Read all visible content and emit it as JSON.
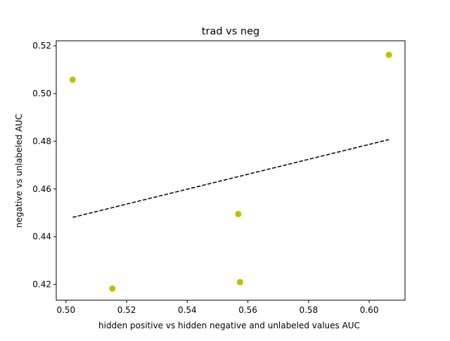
{
  "chart_data": {
    "type": "scatter",
    "title": "trad vs neg",
    "xlabel": "hidden positive vs hidden negative and unlabeled values AUC",
    "ylabel": "negative vs unlabeled AUC",
    "xlim": [
      0.4968,
      0.6118
    ],
    "ylim": [
      0.4134,
      0.5221
    ],
    "xticks": [
      0.5,
      0.52,
      0.54,
      0.56,
      0.58,
      0.6
    ],
    "xtick_labels": [
      "0.50",
      "0.52",
      "0.54",
      "0.56",
      "0.58",
      "0.60"
    ],
    "yticks": [
      0.42,
      0.44,
      0.46,
      0.48,
      0.5,
      0.52
    ],
    "ytick_labels": [
      "0.42",
      "0.44",
      "0.46",
      "0.48",
      "0.50",
      "0.52"
    ],
    "grid": false,
    "series": [
      {
        "kind": "points",
        "color": "#bfbf00",
        "x": [
          0.5022,
          0.5153,
          0.5568,
          0.5574,
          0.6065
        ],
        "y": [
          0.5058,
          0.4183,
          0.4495,
          0.421,
          0.5162
        ]
      },
      {
        "kind": "trend-line",
        "color": "#000000",
        "style": "dashed",
        "x": [
          0.5022,
          0.6065
        ],
        "y": [
          0.4481,
          0.4807
        ]
      }
    ]
  }
}
